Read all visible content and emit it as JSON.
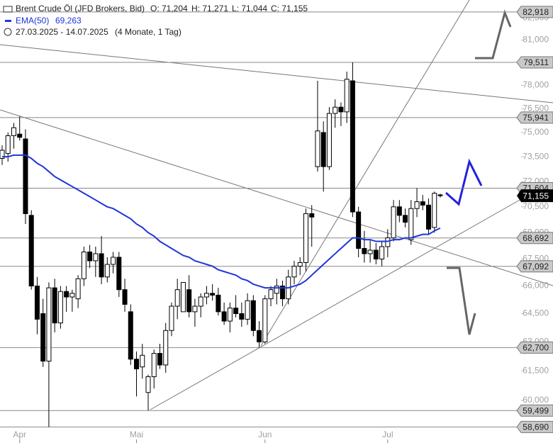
{
  "chart_data": {
    "type": "candlestick",
    "title": "Brent Crude Öl (JFD Brokers, Bid)",
    "ohlc_labels": [
      "O: 71,204",
      "H: 71,271",
      "L: 71,044",
      "C: 71,155"
    ],
    "date_range": "27.03.2025 - 14.07.2025",
    "duration": "(4 Monate, 1 Tag)",
    "ema_legend_value": "69,263",
    "log_scale": true,
    "categories": [
      null,
      null,
      null,
      null,
      null,
      null,
      null,
      null,
      null,
      null,
      null,
      null,
      null,
      null,
      null,
      null,
      null,
      null,
      null,
      null,
      null,
      null,
      null,
      null,
      null,
      null,
      null,
      null,
      null,
      null,
      null,
      null,
      null,
      null,
      null,
      null,
      null,
      null,
      null,
      null,
      null,
      null,
      null,
      null,
      null,
      null,
      null,
      null,
      null,
      null,
      null,
      null,
      null,
      null,
      null,
      null,
      null,
      null,
      null,
      null,
      null,
      null,
      null,
      null,
      null,
      null,
      null,
      null,
      null,
      null,
      null,
      null,
      null,
      null,
      null,
      null
    ],
    "open": [
      73.4,
      73.7,
      74.8,
      74.9,
      74.6,
      70.0,
      66.0,
      64.5,
      62.0,
      65.9,
      64.0,
      65.7,
      65.4,
      65.3,
      66.4,
      67.9,
      67.4,
      67.8,
      66.5,
      67.2,
      67.6,
      65.8,
      64.6,
      62.1,
      61.7,
      60.4,
      61.2,
      62.4,
      61.8,
      63.6,
      64.9,
      64.6,
      65.8,
      64.6,
      64.9,
      65.4,
      65.6,
      65.5,
      64.6,
      64.1,
      64.8,
      64.5,
      64.2,
      65.2,
      63.6,
      63.0,
      65.3,
      65.6,
      66.0,
      65.3,
      66.5,
      67.1,
      67.3,
      70.1,
      72.9,
      75.0,
      72.9,
      76.2,
      76.6,
      76.3,
      78.3,
      70.2,
      68.1,
      67.8,
      68.0,
      67.5,
      68.2,
      68.7,
      70.5,
      70.0,
      68.6,
      70.4,
      70.8,
      70.6,
      69.3,
      71.204
    ],
    "high": [
      74.2,
      75.0,
      75.6,
      76.0,
      75.2,
      70.3,
      66.5,
      65.3,
      66.2,
      66.4,
      66.0,
      66.0,
      65.8,
      66.6,
      68.2,
      68.3,
      68.2,
      68.8,
      67.6,
      67.9,
      67.9,
      66.4,
      65.0,
      62.5,
      62.9,
      61.3,
      62.6,
      62.9,
      64.0,
      65.1,
      66.4,
      66.2,
      66.6,
      65.3,
      65.6,
      66.0,
      66.1,
      65.9,
      65.1,
      65.1,
      65.5,
      65.1,
      65.6,
      65.5,
      64.1,
      65.5,
      66.0,
      66.4,
      66.3,
      66.9,
      67.4,
      67.6,
      70.4,
      70.6,
      78.3,
      75.7,
      76.6,
      77.1,
      76.9,
      78.9,
      79.511,
      70.5,
      69.1,
      68.6,
      68.4,
      68.5,
      69.2,
      70.9,
      70.9,
      70.4,
      70.9,
      71.604,
      71.2,
      71.0,
      71.4,
      71.271
    ],
    "low": [
      73.0,
      73.2,
      74.0,
      74.5,
      69.5,
      65.8,
      63.4,
      61.7,
      58.69,
      63.5,
      63.7,
      64.6,
      64.6,
      64.8,
      66.0,
      67.0,
      66.5,
      66.1,
      66.2,
      66.7,
      65.4,
      64.6,
      61.8,
      60.2,
      61.1,
      59.499,
      60.6,
      61.6,
      61.4,
      63.3,
      64.2,
      64.6,
      64.3,
      63.8,
      64.3,
      65.0,
      65.2,
      64.4,
      63.9,
      63.5,
      64.3,
      63.8,
      63.9,
      63.3,
      62.7,
      62.9,
      64.9,
      65.0,
      64.9,
      65.0,
      66.1,
      66.6,
      66.8,
      68.2,
      72.6,
      71.4,
      72.7,
      75.3,
      75.4,
      75.6,
      69.9,
      67.6,
      67.3,
      67.3,
      67.2,
      67.092,
      67.6,
      68.5,
      69.6,
      69.3,
      68.3,
      69.9,
      70.3,
      68.9,
      69.0,
      71.044
    ],
    "close": [
      73.9,
      74.8,
      75.3,
      74.7,
      70.1,
      66.0,
      64.2,
      62.0,
      65.9,
      64.0,
      65.7,
      65.4,
      65.6,
      66.4,
      67.9,
      67.4,
      67.8,
      66.5,
      67.2,
      67.6,
      65.8,
      65.0,
      62.1,
      61.6,
      62.3,
      61.2,
      62.4,
      61.8,
      63.6,
      64.9,
      65.8,
      66.2,
      64.6,
      64.9,
      65.4,
      65.6,
      65.5,
      64.6,
      64.1,
      64.8,
      64.5,
      64.2,
      65.2,
      63.6,
      63.0,
      65.3,
      65.8,
      66.0,
      65.3,
      66.5,
      67.1,
      67.3,
      70.1,
      69.9,
      75.1,
      72.9,
      76.2,
      76.6,
      76.3,
      78.4,
      70.2,
      68.1,
      67.8,
      68.0,
      67.5,
      68.2,
      68.7,
      70.5,
      70.0,
      69.6,
      70.4,
      70.8,
      70.6,
      69.2,
      71.3,
      71.155
    ],
    "series": [
      {
        "name": "EMA(50)",
        "color": "#1f36d8",
        "values": [
          73.5,
          73.5,
          73.6,
          73.6,
          73.6,
          73.4,
          73.1,
          72.9,
          72.6,
          72.3,
          72.1,
          71.9,
          71.7,
          71.5,
          71.3,
          71.1,
          70.9,
          70.7,
          70.5,
          70.4,
          70.2,
          70.0,
          69.8,
          69.5,
          69.3,
          69.0,
          68.8,
          68.5,
          68.3,
          68.1,
          67.9,
          67.7,
          67.6,
          67.4,
          67.3,
          67.2,
          67.1,
          66.9,
          66.8,
          66.7,
          66.6,
          66.4,
          66.3,
          66.1,
          66.0,
          65.9,
          65.9,
          65.9,
          65.9,
          65.9,
          66.0,
          66.1,
          66.3,
          66.6,
          66.9,
          67.2,
          67.5,
          67.8,
          68.1,
          68.4,
          68.7,
          68.7,
          68.6,
          68.6,
          68.5,
          68.5,
          68.5,
          68.6,
          68.6,
          68.7,
          68.7,
          68.8,
          68.9,
          68.9,
          69.1,
          69.263
        ]
      }
    ],
    "xticks": [
      {
        "value": 3,
        "label": "Apr"
      },
      {
        "value": 23,
        "label": "Mai"
      },
      {
        "value": 45,
        "label": "Jun"
      },
      {
        "value": 66,
        "label": "Jul"
      }
    ],
    "ylim": [
      58.6,
      83.75
    ],
    "yticks": [
      {
        "value": 60,
        "label": "60,000"
      },
      {
        "value": 61.5,
        "label": "61,500"
      },
      {
        "value": 63,
        "label": "63,000"
      },
      {
        "value": 64.5,
        "label": "64,500"
      },
      {
        "value": 66,
        "label": "66,000"
      },
      {
        "value": 67.5,
        "label": "67,500"
      },
      {
        "value": 69,
        "label": "69,000"
      },
      {
        "value": 70.5,
        "label": "70,500"
      },
      {
        "value": 72,
        "label": "72,000"
      },
      {
        "value": 73.5,
        "label": "73,500"
      },
      {
        "value": 75,
        "label": "75,000"
      },
      {
        "value": 76.5,
        "label": "76,500"
      },
      {
        "value": 78,
        "label": "78,000"
      },
      {
        "value": 79.5,
        "label": "79,500"
      },
      {
        "value": 81,
        "label": "81,000"
      },
      {
        "value": 82.5,
        "label": "82,500"
      }
    ],
    "levels": [
      82.918,
      79.511,
      75.941,
      71.604,
      68.692,
      67.092,
      62.7,
      59.499,
      58.69
    ],
    "level_labels": [
      "82,918",
      "79,511",
      "75,941",
      "71,604",
      "68,692",
      "67,092",
      "62,700",
      "59,499",
      "58,690"
    ],
    "last_price": 71.155,
    "last_price_label": "71,155",
    "up_color": "#ffffff",
    "down_color": "#000000",
    "grid": false
  }
}
